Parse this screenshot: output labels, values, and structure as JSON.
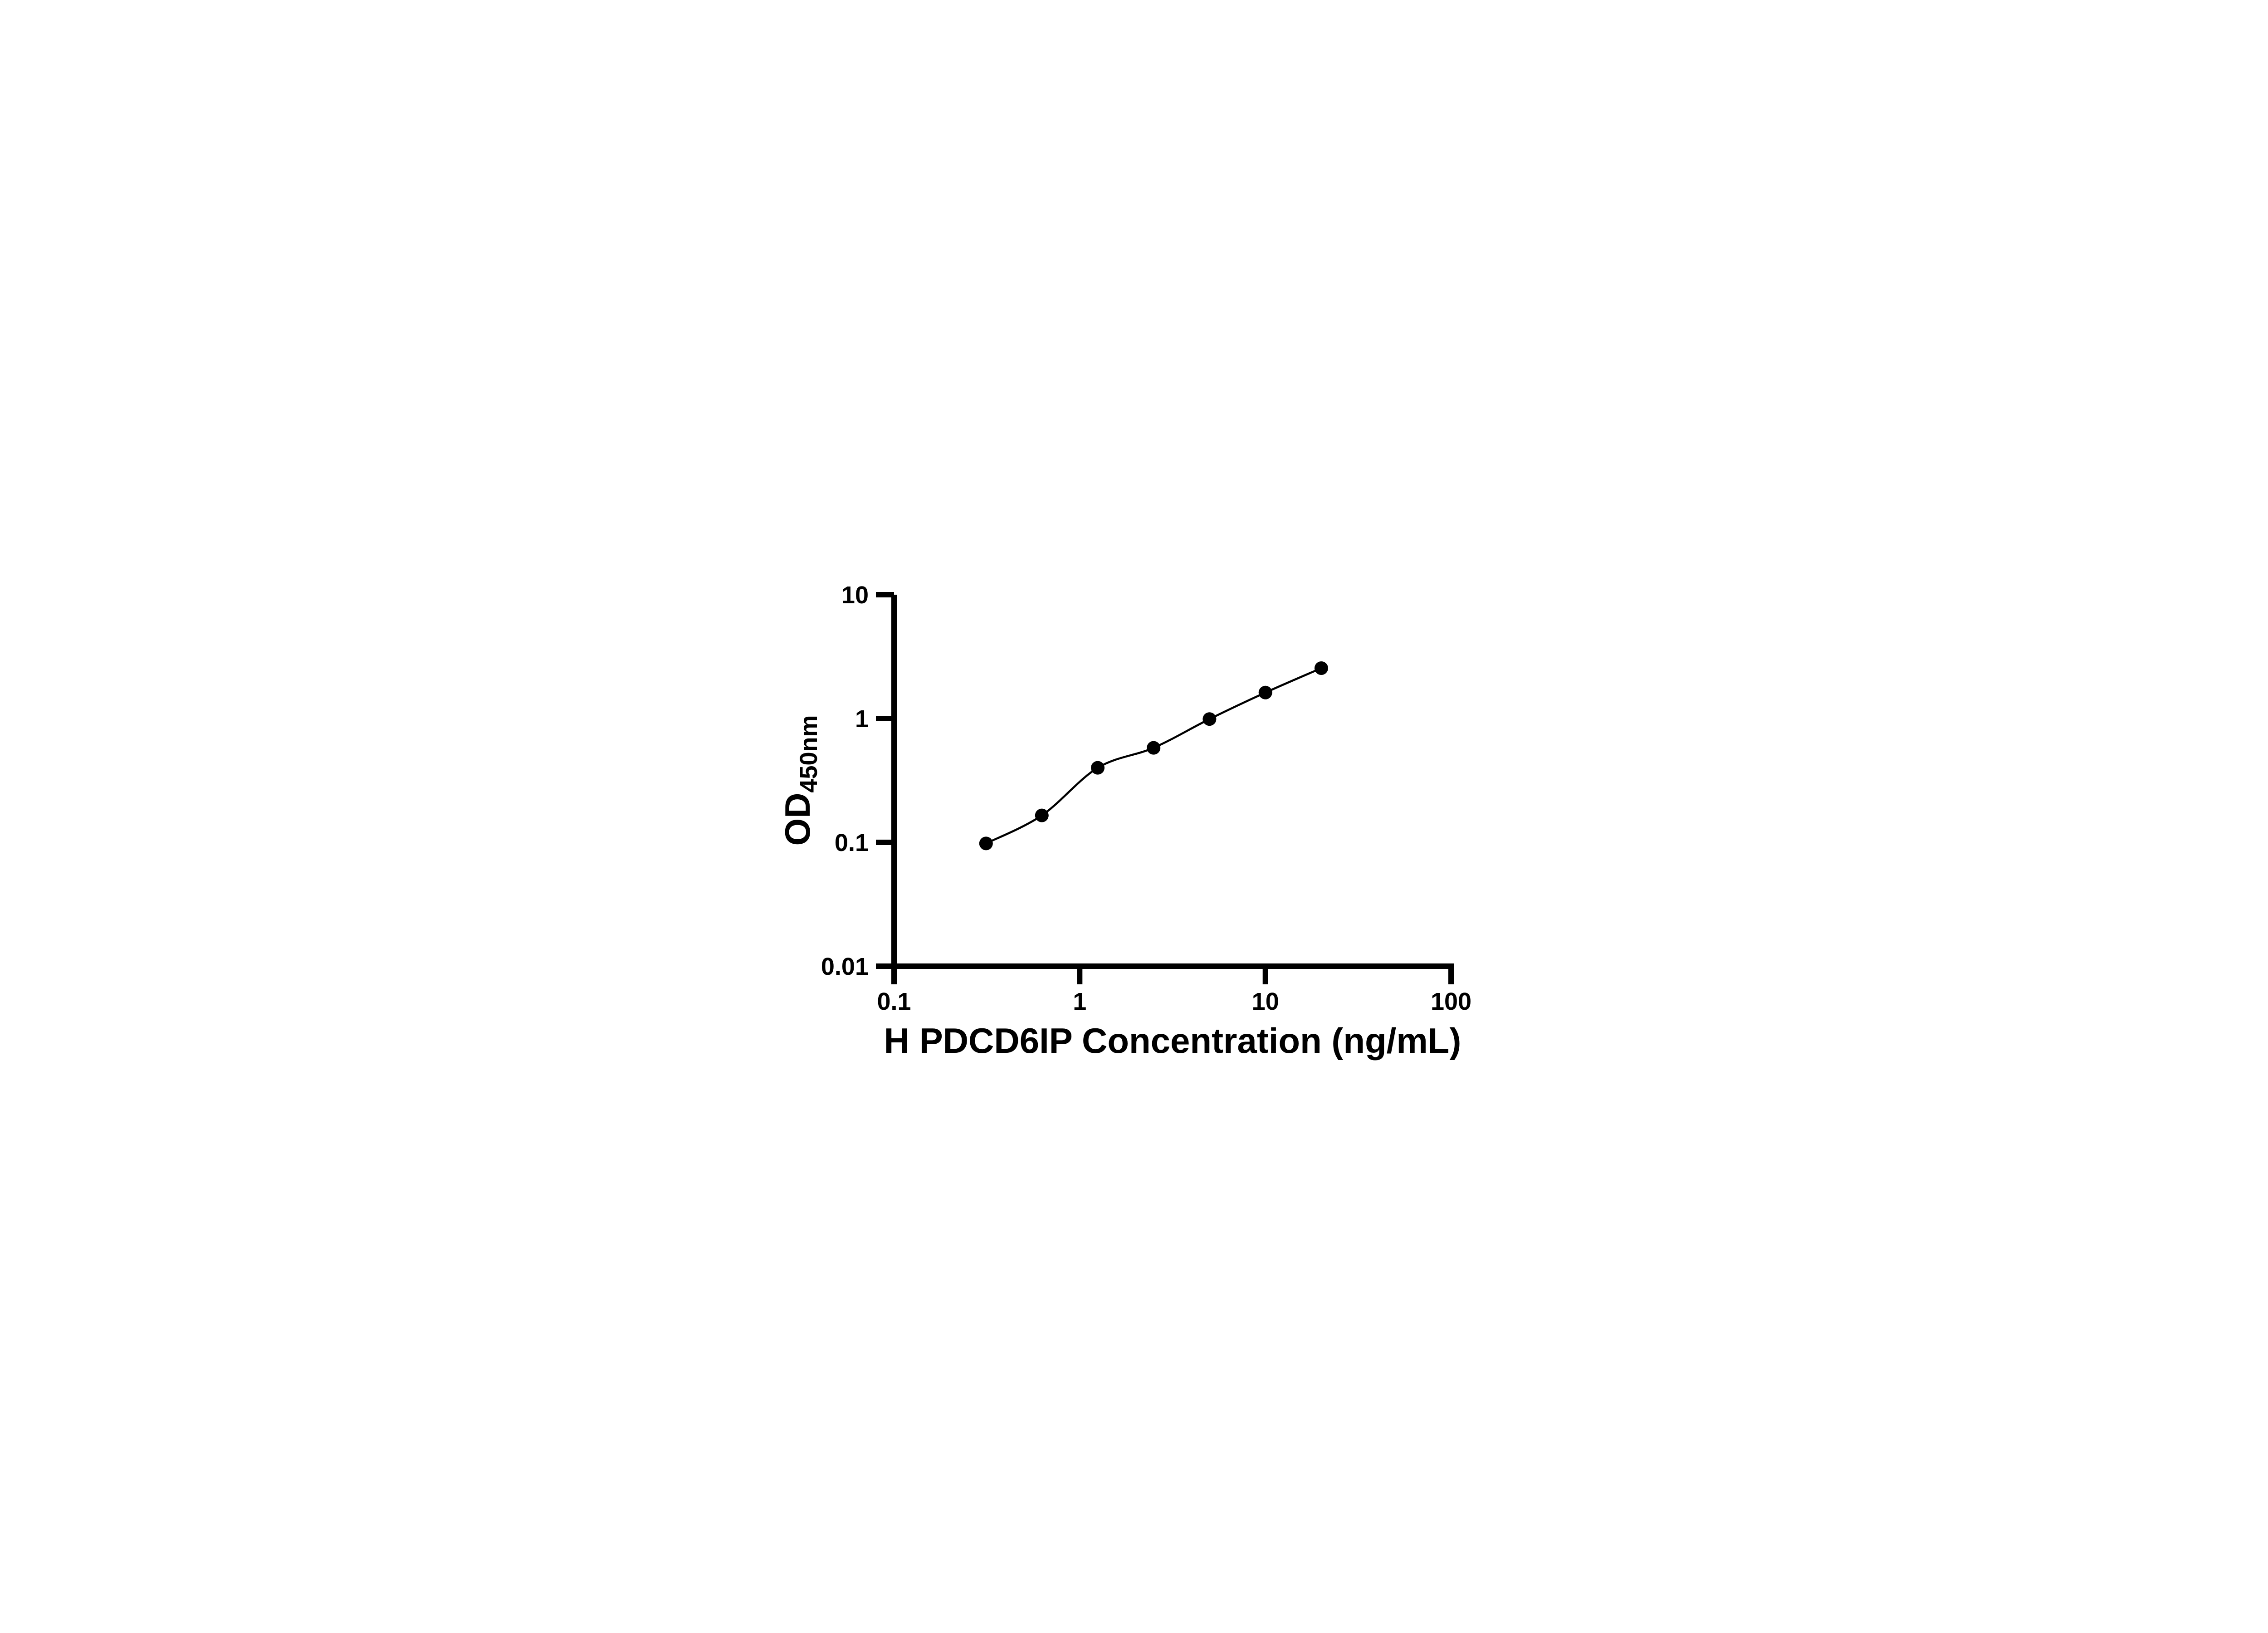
{
  "figure": {
    "background": "#ffffff",
    "ink_color": "#000000"
  },
  "chart_data": {
    "type": "scatter",
    "title": "",
    "xlabel": "H PDCD6IP Concentration (ng/mL)",
    "ylabel": "OD450nm",
    "ylabel_main": "OD",
    "ylabel_sub": "450nm",
    "x_scale": "log10",
    "y_scale": "log10",
    "xlim": [
      0.1,
      100
    ],
    "ylim": [
      0.01,
      10
    ],
    "x_ticks": [
      0.1,
      1,
      10,
      100
    ],
    "x_tick_labels": [
      "0.1",
      "1",
      "10",
      "100"
    ],
    "y_ticks": [
      0.01,
      0.1,
      1,
      10
    ],
    "y_tick_labels": [
      "0.01",
      "0.1",
      "1",
      "10"
    ],
    "grid": false,
    "legend": false,
    "marker": "circle",
    "marker_color": "#000000",
    "line_color": "#000000",
    "points": [
      {
        "x": 0.313,
        "y": 0.098
      },
      {
        "x": 0.625,
        "y": 0.165
      },
      {
        "x": 1.25,
        "y": 0.4
      },
      {
        "x": 2.5,
        "y": 0.58
      },
      {
        "x": 5,
        "y": 0.99
      },
      {
        "x": 10,
        "y": 1.62
      },
      {
        "x": 20,
        "y": 2.55
      }
    ]
  }
}
